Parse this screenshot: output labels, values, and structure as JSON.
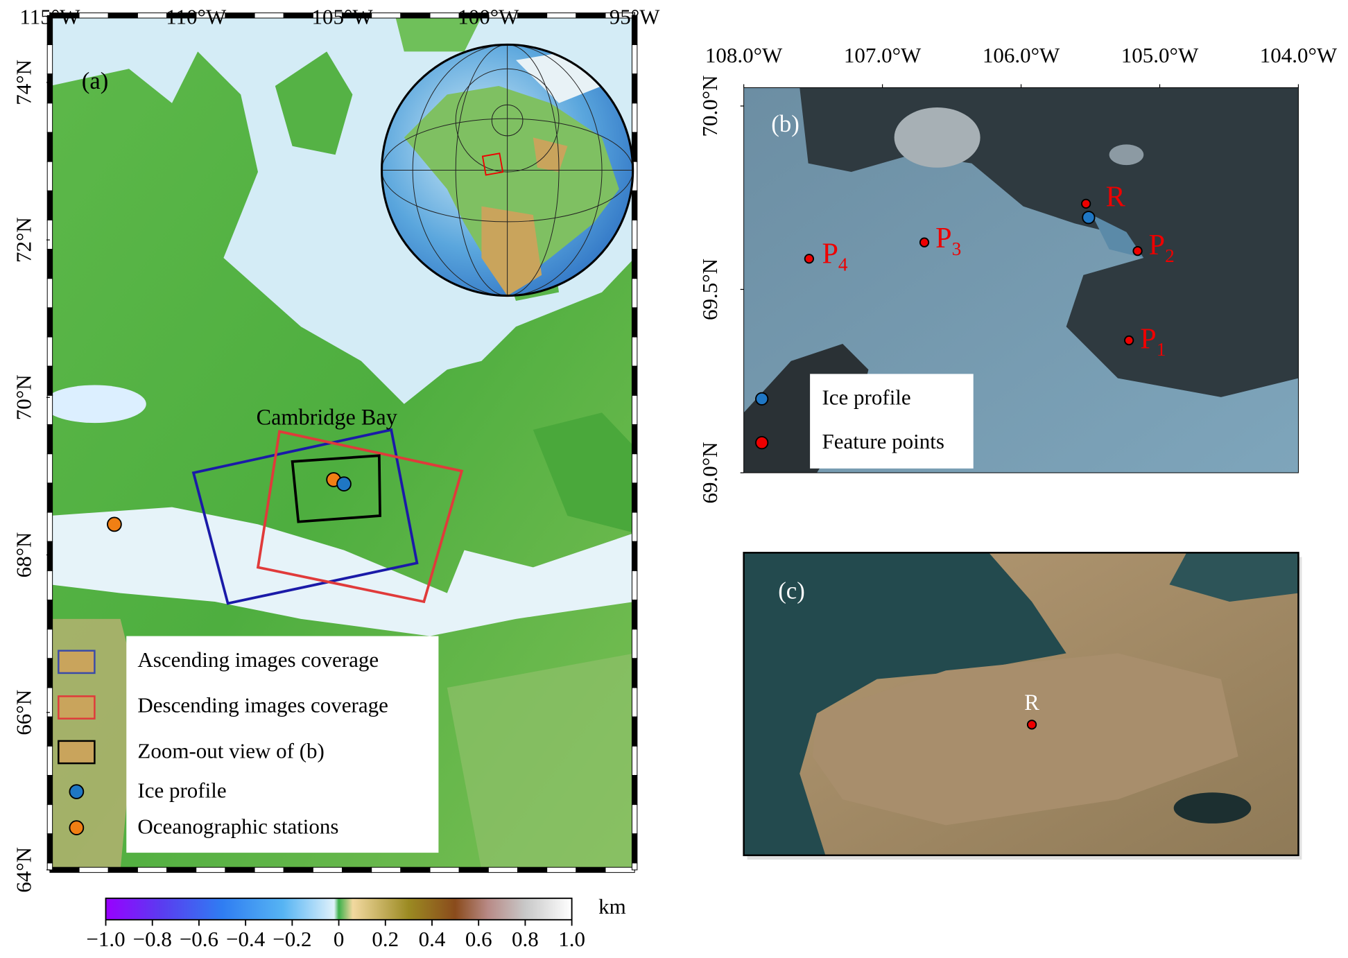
{
  "panel_a": {
    "label": "(a)",
    "lon_lim": [
      -115,
      -95
    ],
    "lon_ticks": [
      {
        "value": -115,
        "label": "115°W"
      },
      {
        "value": -110,
        "label": "110°W"
      },
      {
        "value": -105,
        "label": "105°W"
      },
      {
        "value": -100,
        "label": "100°W"
      },
      {
        "value": -95,
        "label": "95°W"
      }
    ],
    "lat_lim": [
      64,
      74.85
    ],
    "lat_ticks": [
      {
        "value": 64,
        "label": "64°N"
      },
      {
        "value": 66,
        "label": "66°N"
      },
      {
        "value": 68,
        "label": "68°N"
      },
      {
        "value": 70,
        "label": "70°N"
      },
      {
        "value": 72,
        "label": "72°N"
      },
      {
        "value": 74,
        "label": "74°N"
      }
    ],
    "place": "Cambridge Bay",
    "legend": [
      "Ascending images coverage",
      "Descending images coverage",
      "Zoom-out view of (b)",
      "Ice profile",
      "Oceanographic stations"
    ]
  },
  "panel_b": {
    "label": "(b)",
    "lon_lim": [
      -108,
      -104
    ],
    "lon_ticks": [
      {
        "value": -108,
        "label": "108.0°W"
      },
      {
        "value": -107,
        "label": "107.0°W"
      },
      {
        "value": -106,
        "label": "106.0°W"
      },
      {
        "value": -105,
        "label": "105.0°W"
      },
      {
        "value": -104,
        "label": "104.0°W"
      }
    ],
    "lat_lim": [
      69.0,
      70.05
    ],
    "lat_ticks": [
      {
        "value": 69,
        "label": "69.0°N"
      },
      {
        "value": 69.5,
        "label": "69.5°N"
      },
      {
        "value": 70,
        "label": "70.0°N"
      }
    ],
    "points": [
      {
        "name": "R"
      },
      {
        "name": "P",
        "sub": "1"
      },
      {
        "name": "P",
        "sub": "2"
      },
      {
        "name": "P",
        "sub": "3"
      },
      {
        "name": "P",
        "sub": "4"
      }
    ],
    "legend": [
      "Ice profile",
      "Feature points"
    ]
  },
  "panel_c": {
    "label": "(c)",
    "point": "R"
  },
  "colorbar": {
    "unit": "km",
    "lim": [
      -1,
      1
    ],
    "ticks": [
      {
        "value": -1,
        "label": "−1.0"
      },
      {
        "value": -0.8,
        "label": "−0.8"
      },
      {
        "value": -0.6,
        "label": "−0.6"
      },
      {
        "value": -0.4,
        "label": "−0.4"
      },
      {
        "value": -0.2,
        "label": "−0.2"
      },
      0,
      0.2,
      0.4,
      0.6,
      0.8,
      {
        "value": 1,
        "label": "1.0"
      }
    ]
  }
}
